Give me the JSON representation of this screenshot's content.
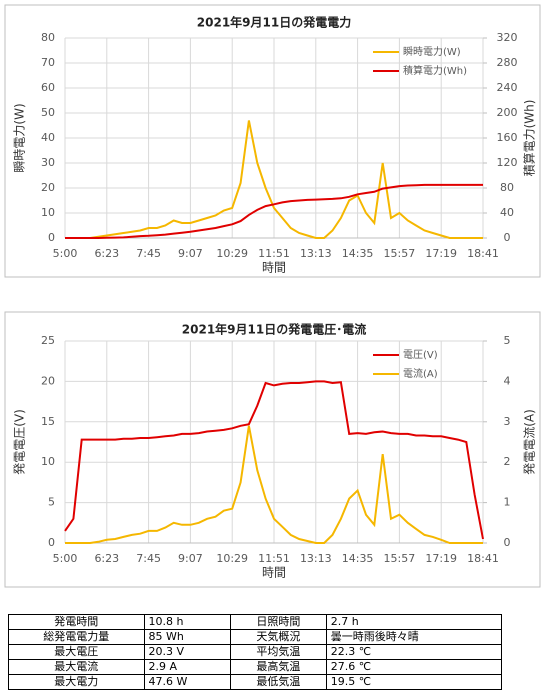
{
  "chart_data": [
    {
      "type": "line",
      "title": "2021年9月11日の発電電力",
      "xlabel": "時間",
      "ylabel": "瞬時電力(W)",
      "y2label": "積算電力(Wh)",
      "categories": [
        "5:00",
        null,
        null,
        null,
        null,
        "6:23",
        null,
        null,
        null,
        null,
        "7:45",
        null,
        null,
        null,
        null,
        "9:07",
        null,
        null,
        null,
        null,
        "10:29",
        null,
        null,
        null,
        null,
        "11:51",
        null,
        null,
        null,
        null,
        "13:13",
        null,
        null,
        null,
        null,
        "14:35",
        null,
        null,
        null,
        null,
        "15:57",
        null,
        null,
        null,
        null,
        "17:19",
        null,
        null,
        null,
        null,
        "18:41"
      ],
      "series": [
        {
          "name": "瞬時電力(W)",
          "color": "#f5b700",
          "values": [
            0,
            0,
            0,
            0,
            0.5,
            1,
            1.5,
            2,
            2.5,
            3,
            4,
            4,
            5,
            7,
            6,
            6,
            7,
            8,
            9,
            11,
            12,
            22,
            47,
            30,
            20,
            12,
            8,
            4,
            2,
            1,
            0,
            0,
            3,
            8,
            15,
            17,
            10,
            6,
            30,
            8,
            10,
            7,
            5,
            3,
            2,
            1,
            0,
            0,
            0,
            0,
            0
          ]
        },
        {
          "name": "積算電力(Wh)",
          "color": "#e00000",
          "axis": "y2",
          "values": [
            0,
            0,
            0,
            0,
            0,
            0.3,
            0.7,
            1,
            2,
            3,
            3.5,
            4.5,
            5.5,
            7,
            8.5,
            10,
            12,
            14,
            16,
            19,
            22,
            27,
            37,
            45,
            51,
            54,
            57,
            59,
            60,
            61,
            61.5,
            62,
            62.5,
            63.5,
            66,
            70,
            72,
            74,
            79,
            81,
            83,
            84,
            84.5,
            85,
            85,
            85,
            85,
            85,
            85,
            85,
            85
          ]
        }
      ],
      "ylim": [
        0,
        80
      ],
      "yticks": [
        0,
        10,
        20,
        30,
        40,
        50,
        60,
        70,
        80
      ],
      "y2lim": [
        0,
        320
      ],
      "y2ticks": [
        0,
        40,
        80,
        120,
        160,
        200,
        240,
        280,
        320
      ],
      "grid": true,
      "legend": "upper right"
    },
    {
      "type": "line",
      "title": "2021年9月11日の発電電圧･電流",
      "xlabel": "時間",
      "ylabel": "発電電圧(V)",
      "y2label": "発電電流(A)",
      "categories": [
        "5:00",
        null,
        null,
        null,
        null,
        "6:23",
        null,
        null,
        null,
        null,
        "7:45",
        null,
        null,
        null,
        null,
        "9:07",
        null,
        null,
        null,
        null,
        "10:29",
        null,
        null,
        null,
        null,
        "11:51",
        null,
        null,
        null,
        null,
        "13:13",
        null,
        null,
        null,
        null,
        "14:35",
        null,
        null,
        null,
        null,
        "15:57",
        null,
        null,
        null,
        null,
        "17:19",
        null,
        null,
        null,
        null,
        "18:41"
      ],
      "series": [
        {
          "name": "電圧(V)",
          "color": "#e00000",
          "values": [
            1.5,
            3,
            12.8,
            12.8,
            12.8,
            12.8,
            12.8,
            12.9,
            12.9,
            13,
            13,
            13.1,
            13.2,
            13.3,
            13.5,
            13.5,
            13.6,
            13.8,
            13.9,
            14,
            14.2,
            14.5,
            14.7,
            17,
            19.8,
            19.5,
            19.7,
            19.8,
            19.8,
            19.9,
            20,
            20,
            19.8,
            19.9,
            13.5,
            13.6,
            13.5,
            13.7,
            13.8,
            13.6,
            13.5,
            13.5,
            13.3,
            13.3,
            13.2,
            13.2,
            13,
            12.8,
            12.5,
            6,
            0.5
          ]
        },
        {
          "name": "電流(A)",
          "color": "#f5b700",
          "axis": "y2",
          "values": [
            0,
            0,
            0,
            0,
            0.03,
            0.08,
            0.1,
            0.15,
            0.2,
            0.23,
            0.3,
            0.3,
            0.38,
            0.5,
            0.45,
            0.45,
            0.5,
            0.6,
            0.65,
            0.8,
            0.85,
            1.5,
            2.9,
            1.8,
            1.1,
            0.6,
            0.4,
            0.2,
            0.1,
            0.05,
            0,
            0,
            0.2,
            0.6,
            1.1,
            1.3,
            0.7,
            0.45,
            2.2,
            0.6,
            0.7,
            0.5,
            0.35,
            0.2,
            0.15,
            0.08,
            0,
            0,
            0,
            0,
            0
          ]
        }
      ],
      "ylim": [
        0,
        25
      ],
      "yticks": [
        0,
        5,
        10,
        15,
        20,
        25
      ],
      "y2lim": [
        0,
        5
      ],
      "y2ticks": [
        0,
        1,
        2,
        3,
        4,
        5
      ],
      "grid": true,
      "legend": "upper right"
    }
  ],
  "table": {
    "rows": [
      [
        "発電時間",
        "10.8 h",
        "日照時間",
        "2.7 h"
      ],
      [
        "総発電電力量",
        "85 Wh",
        "天気概況",
        "曇一時雨後時々晴"
      ],
      [
        "最大電圧",
        "20.3 V",
        "平均気温",
        "22.3 ℃"
      ],
      [
        "最大電流",
        "2.9 A",
        "最高気温",
        "27.6 ℃"
      ],
      [
        "最大電力",
        "47.6 W",
        "最低気温",
        "19.5 ℃"
      ]
    ]
  }
}
